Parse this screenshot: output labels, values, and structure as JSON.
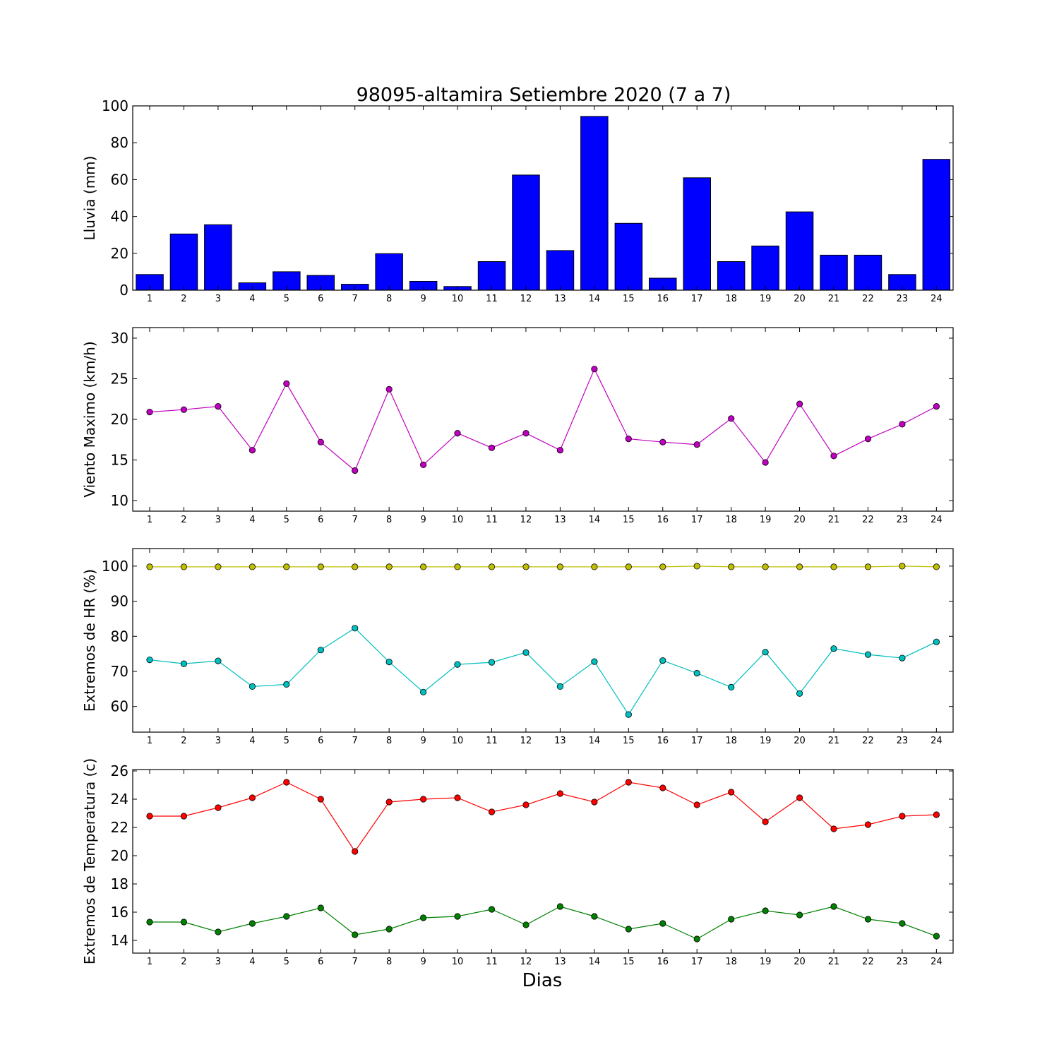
{
  "title": "98095-altamira Setiembre 2020  (7 a 7)",
  "xlabel": "Dias",
  "chart_data": [
    {
      "type": "bar",
      "ylabel": "Lluvia (mm)",
      "ylim": [
        0,
        100
      ],
      "yticks": [
        0,
        20,
        40,
        60,
        80,
        100
      ],
      "x": [
        1,
        2,
        3,
        4,
        5,
        6,
        7,
        8,
        9,
        10,
        11,
        12,
        13,
        14,
        15,
        16,
        17,
        18,
        19,
        20,
        21,
        22,
        23,
        24
      ],
      "series": [
        {
          "color": "#0000ff",
          "values": [
            8.5,
            30.5,
            35.5,
            4,
            10,
            8,
            3.2,
            19.8,
            4.8,
            2,
            15.5,
            62.5,
            21.5,
            94.3,
            36.3,
            6.5,
            61,
            15.5,
            24,
            42.5,
            19,
            19,
            8.5,
            71
          ]
        }
      ]
    },
    {
      "type": "line",
      "ylabel": "Viento Maximo (km/h)",
      "ylim": [
        8.7,
        31.3
      ],
      "yticks": [
        10,
        15,
        20,
        25,
        30
      ],
      "x": [
        1,
        2,
        3,
        4,
        5,
        6,
        7,
        8,
        9,
        10,
        11,
        12,
        13,
        14,
        15,
        16,
        17,
        18,
        19,
        20,
        21,
        22,
        23,
        24
      ],
      "series": [
        {
          "color": "#bf00bf",
          "values": [
            20.9,
            21.2,
            21.6,
            16.2,
            24.4,
            17.2,
            13.7,
            23.7,
            14.4,
            18.3,
            16.5,
            18.3,
            16.2,
            26.2,
            17.6,
            17.2,
            16.9,
            20.1,
            14.7,
            21.9,
            15.5,
            17.6,
            19.4,
            21.6
          ]
        }
      ]
    },
    {
      "type": "line",
      "ylabel": "Extremos de HR (%)",
      "ylim": [
        52.7,
        105
      ],
      "yticks": [
        60,
        70,
        80,
        90,
        100
      ],
      "x": [
        1,
        2,
        3,
        4,
        5,
        6,
        7,
        8,
        9,
        10,
        11,
        12,
        13,
        14,
        15,
        16,
        17,
        18,
        19,
        20,
        21,
        22,
        23,
        24
      ],
      "series": [
        {
          "color": "#bfbf00",
          "values": [
            99.8,
            99.8,
            99.8,
            99.8,
            99.8,
            99.8,
            99.8,
            99.8,
            99.8,
            99.8,
            99.8,
            99.8,
            99.8,
            99.8,
            99.8,
            99.8,
            100,
            99.8,
            99.8,
            99.8,
            99.8,
            99.8,
            100,
            99.8
          ]
        },
        {
          "color": "#00bfbf",
          "values": [
            73.3,
            72.2,
            73,
            65.7,
            66.3,
            76.1,
            82.3,
            72.7,
            64.1,
            72,
            72.6,
            75.4,
            65.7,
            72.8,
            57.7,
            73.1,
            69.5,
            65.5,
            75.5,
            63.7,
            76.5,
            74.8,
            73.8,
            78.4
          ]
        }
      ]
    },
    {
      "type": "line",
      "ylabel": "Extremos de Temperatura (c)",
      "ylim": [
        13.1,
        26.1
      ],
      "yticks": [
        14,
        16,
        18,
        20,
        22,
        24,
        26
      ],
      "x": [
        1,
        2,
        3,
        4,
        5,
        6,
        7,
        8,
        9,
        10,
        11,
        12,
        13,
        14,
        15,
        16,
        17,
        18,
        19,
        20,
        21,
        22,
        23,
        24
      ],
      "series": [
        {
          "color": "#ff0000",
          "values": [
            22.8,
            22.8,
            23.4,
            24.1,
            25.2,
            24,
            20.3,
            23.8,
            24,
            24.1,
            23.1,
            23.6,
            24.4,
            23.8,
            25.2,
            24.8,
            23.6,
            24.5,
            22.4,
            24.1,
            21.9,
            22.2,
            22.8,
            22.9
          ]
        },
        {
          "color": "#008000",
          "values": [
            15.3,
            15.3,
            14.6,
            15.2,
            15.7,
            16.3,
            14.4,
            14.8,
            15.6,
            15.7,
            16.2,
            15.1,
            16.4,
            15.7,
            14.8,
            15.2,
            14.1,
            15.5,
            16.1,
            15.8,
            16.4,
            15.5,
            15.2,
            14.3
          ]
        }
      ]
    }
  ]
}
